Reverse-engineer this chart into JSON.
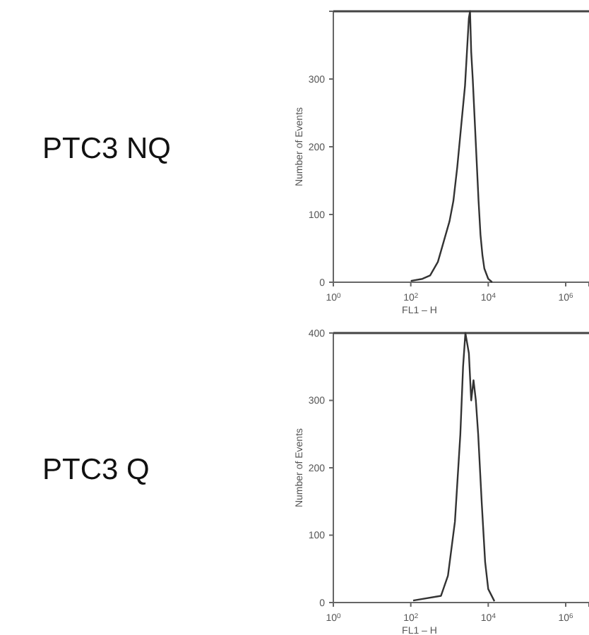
{
  "chart_data": [
    {
      "type": "line",
      "title": "PTC3 NQ",
      "xlabel": "FL1 – H",
      "ylabel": "Number of Events",
      "log": "x",
      "grid": false,
      "line_style": "solid",
      "marker": "none",
      "x": [
        100,
        200,
        316,
        501,
        708,
        1000,
        1259,
        1585,
        1995,
        2512,
        2818,
        3162,
        3388,
        3631,
        3981,
        4467,
        5012,
        5623,
        6310,
        7079,
        7943,
        10000,
        12589
      ],
      "series": [
        {
          "color": "#333333",
          "values": [
            2,
            5,
            10,
            30,
            60,
            90,
            120,
            170,
            230,
            290,
            340,
            390,
            400,
            340,
            300,
            240,
            180,
            120,
            70,
            40,
            20,
            5,
            0
          ]
        }
      ],
      "xlim": [
        1,
        4000000
      ],
      "xticks": [
        {
          "value": 1,
          "label": "10$^{0}$"
        },
        {
          "value": 100,
          "label": "10$^{2}$"
        },
        {
          "value": 10000,
          "label": "10$^{4}$"
        },
        {
          "value": 1000000,
          "label": "10$^{6}$"
        }
      ],
      "ylim": [
        0,
        400
      ],
      "yticks": [
        0,
        100,
        200,
        300
      ]
    },
    {
      "type": "line",
      "title": "PTC3 Q",
      "xlabel": "FL1 – H",
      "ylabel": "Number of Events",
      "log": "x",
      "grid": false,
      "line_style": "solid",
      "marker": "none",
      "x": [
        115,
        603,
        912,
        1380,
        1905,
        2239,
        2570,
        3162,
        3631,
        4169,
        4786,
        5495,
        6761,
        8318,
        10000,
        14454
      ],
      "series": [
        {
          "color": "#333333",
          "values": [
            3,
            10,
            40,
            120,
            250,
            350,
            400,
            370,
            300,
            330,
            300,
            250,
            150,
            60,
            20,
            2
          ]
        }
      ],
      "xlim": [
        1,
        4000000
      ],
      "xticks": [
        {
          "value": 1,
          "label": "10$^{0}$"
        },
        {
          "value": 100,
          "label": "10$^{2}$"
        },
        {
          "value": 10000,
          "label": "10$^{4}$"
        },
        {
          "value": 1000000,
          "label": "10$^{6}$"
        }
      ],
      "ylim": [
        0,
        400
      ],
      "yticks": [
        0,
        100,
        200,
        300,
        400
      ]
    }
  ]
}
